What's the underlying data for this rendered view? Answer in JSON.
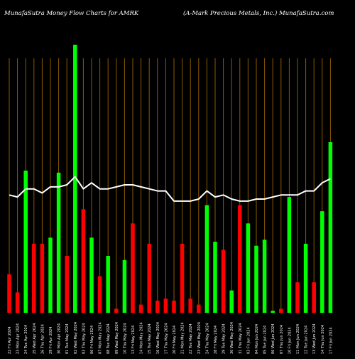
{
  "header": {
    "left": "MunafaSutra  Money Flow  Charts for AMRK",
    "right": "(A-Mark Precious Metals, Inc.) MunafaSutra.com"
  },
  "colors": {
    "background": "#000000",
    "up": "#00ff00",
    "down": "#ff0000",
    "gridline": "#8b5a00",
    "line": "#ffffff"
  },
  "chart_data": {
    "type": "bar",
    "series": [
      {
        "values": [
          19,
          10,
          70,
          34,
          34,
          37,
          69,
          28,
          132,
          51,
          37,
          18,
          28,
          2,
          26,
          44,
          4,
          34,
          6,
          7,
          6,
          34,
          7,
          4,
          53,
          35,
          31,
          11,
          53,
          44,
          33,
          36,
          1,
          2,
          57,
          15,
          34,
          15,
          50,
          84
        ],
        "colors": [
          "red",
          "red",
          "green",
          "red",
          "red",
          "green",
          "green",
          "red",
          "green",
          "red",
          "green",
          "red",
          "green",
          "red",
          "green",
          "red",
          "red",
          "red",
          "red",
          "red",
          "red",
          "red",
          "red",
          "red",
          "green",
          "green",
          "red",
          "green",
          "red",
          "green",
          "green",
          "green",
          "green",
          "red",
          "green",
          "red",
          "green",
          "red",
          "green",
          "green"
        ]
      },
      {
        "type": "line",
        "values": [
          58,
          57,
          61,
          61,
          59,
          62,
          62,
          63,
          67,
          61,
          64,
          61,
          61,
          62,
          63,
          63,
          62,
          61,
          60,
          60,
          55,
          55,
          55,
          56,
          60,
          57,
          58,
          56,
          55,
          55,
          56,
          56,
          57,
          58,
          58,
          58,
          60,
          60,
          64,
          66
        ]
      }
    ],
    "dates": [
      "22 Fri Apr 2024",
      "23 Mon Apr 2024",
      "24 Tue Apr 2024",
      "25 Wed Apr 2024",
      "26 Thu Apr 2024",
      "29 Fri Apr 2024",
      "30 Mon Apr 2024",
      "01 Tue May 2024",
      "02 Wed May 2024",
      "03 Thu May 2024",
      "06 Fri May 2024",
      "07 Mon May 2024",
      "08 Tue May 2024",
      "09 Wed May 2024",
      "10 Thu May 2024",
      "13 Fri May 2024",
      "14 Mon May 2024",
      "15 Tue May 2024",
      "16 Wed May 2024",
      "17 Thu May 2024",
      "20 Fri May 2024",
      "21 Mon May 2024",
      "22 Tue May 2024",
      "23 Wed May 2024",
      "24 Thu May 2024",
      "28 Fri May 2024",
      "29 Tue May 2024",
      "30 Wed May 2024",
      "31 Thu May 2024",
      "03 Fri Jun 2024",
      "04 Mon Jun 2024",
      "05 Tue Jun 2024",
      "06 Wed Jun 2024",
      "07 Thu Jun 2024",
      "10 Fri Jun 2024",
      "11 Mon Jun 2024",
      "12 Tue Jun 2024",
      "13 Wed Jun 2024",
      "14 Thu Jun 2024",
      "17 Fri Jun 2024"
    ],
    "grid": true,
    "ylim": [
      0,
      140
    ]
  }
}
